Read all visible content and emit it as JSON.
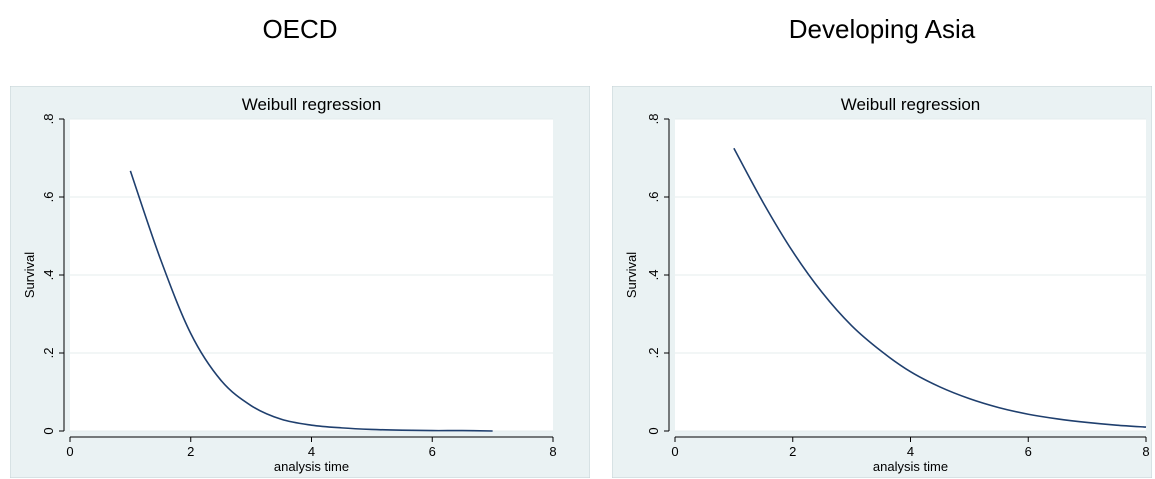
{
  "chart_data": [
    {
      "heading": "OECD",
      "type": "line",
      "title": "Weibull regression",
      "xlabel": "analysis time",
      "ylabel": "Survival",
      "xlim": [
        0,
        8
      ],
      "ylim": [
        0,
        0.8
      ],
      "xticks": [
        {
          "value": 0,
          "label": "0"
        },
        {
          "value": 2,
          "label": "2"
        },
        {
          "value": 4,
          "label": "4"
        },
        {
          "value": 6,
          "label": "6"
        },
        {
          "value": 8,
          "label": "8"
        }
      ],
      "yticks": [
        {
          "value": 0,
          "label": "0"
        },
        {
          "value": 0.2,
          "label": ".2"
        },
        {
          "value": 0.4,
          "label": ".4"
        },
        {
          "value": 0.6,
          "label": ".6"
        },
        {
          "value": 0.8,
          "label": ".8"
        }
      ],
      "grid": true,
      "series": [
        {
          "color": "#1f3f6e",
          "x": [
            1,
            1.5,
            2,
            2.5,
            3,
            3.5,
            4,
            4.5,
            5,
            5.5,
            6,
            6.5,
            7
          ],
          "y": [
            0.667,
            0.44,
            0.25,
            0.13,
            0.065,
            0.03,
            0.015,
            0.008,
            0.004,
            0.002,
            0.001,
            0.001,
            0.0
          ]
        }
      ]
    },
    {
      "heading": "Developing Asia",
      "type": "line",
      "title": "Weibull regression",
      "xlabel": "analysis time",
      "ylabel": "Survival",
      "xlim": [
        0,
        8
      ],
      "ylim": [
        0,
        0.8
      ],
      "xticks": [
        {
          "value": 0,
          "label": "0"
        },
        {
          "value": 2,
          "label": "2"
        },
        {
          "value": 4,
          "label": "4"
        },
        {
          "value": 6,
          "label": "6"
        },
        {
          "value": 8,
          "label": "8"
        }
      ],
      "yticks": [
        {
          "value": 0,
          "label": "0"
        },
        {
          "value": 0.2,
          "label": ".2"
        },
        {
          "value": 0.4,
          "label": ".4"
        },
        {
          "value": 0.6,
          "label": ".6"
        },
        {
          "value": 0.8,
          "label": ".8"
        }
      ],
      "grid": true,
      "series": [
        {
          "color": "#1f3f6e",
          "x": [
            1,
            1.5,
            2,
            2.5,
            3,
            3.5,
            4,
            4.5,
            5,
            5.5,
            6,
            6.5,
            7,
            7.5,
            8
          ],
          "y": [
            0.725,
            0.585,
            0.46,
            0.355,
            0.27,
            0.205,
            0.152,
            0.113,
            0.083,
            0.06,
            0.043,
            0.031,
            0.022,
            0.015,
            0.01
          ]
        }
      ]
    }
  ]
}
